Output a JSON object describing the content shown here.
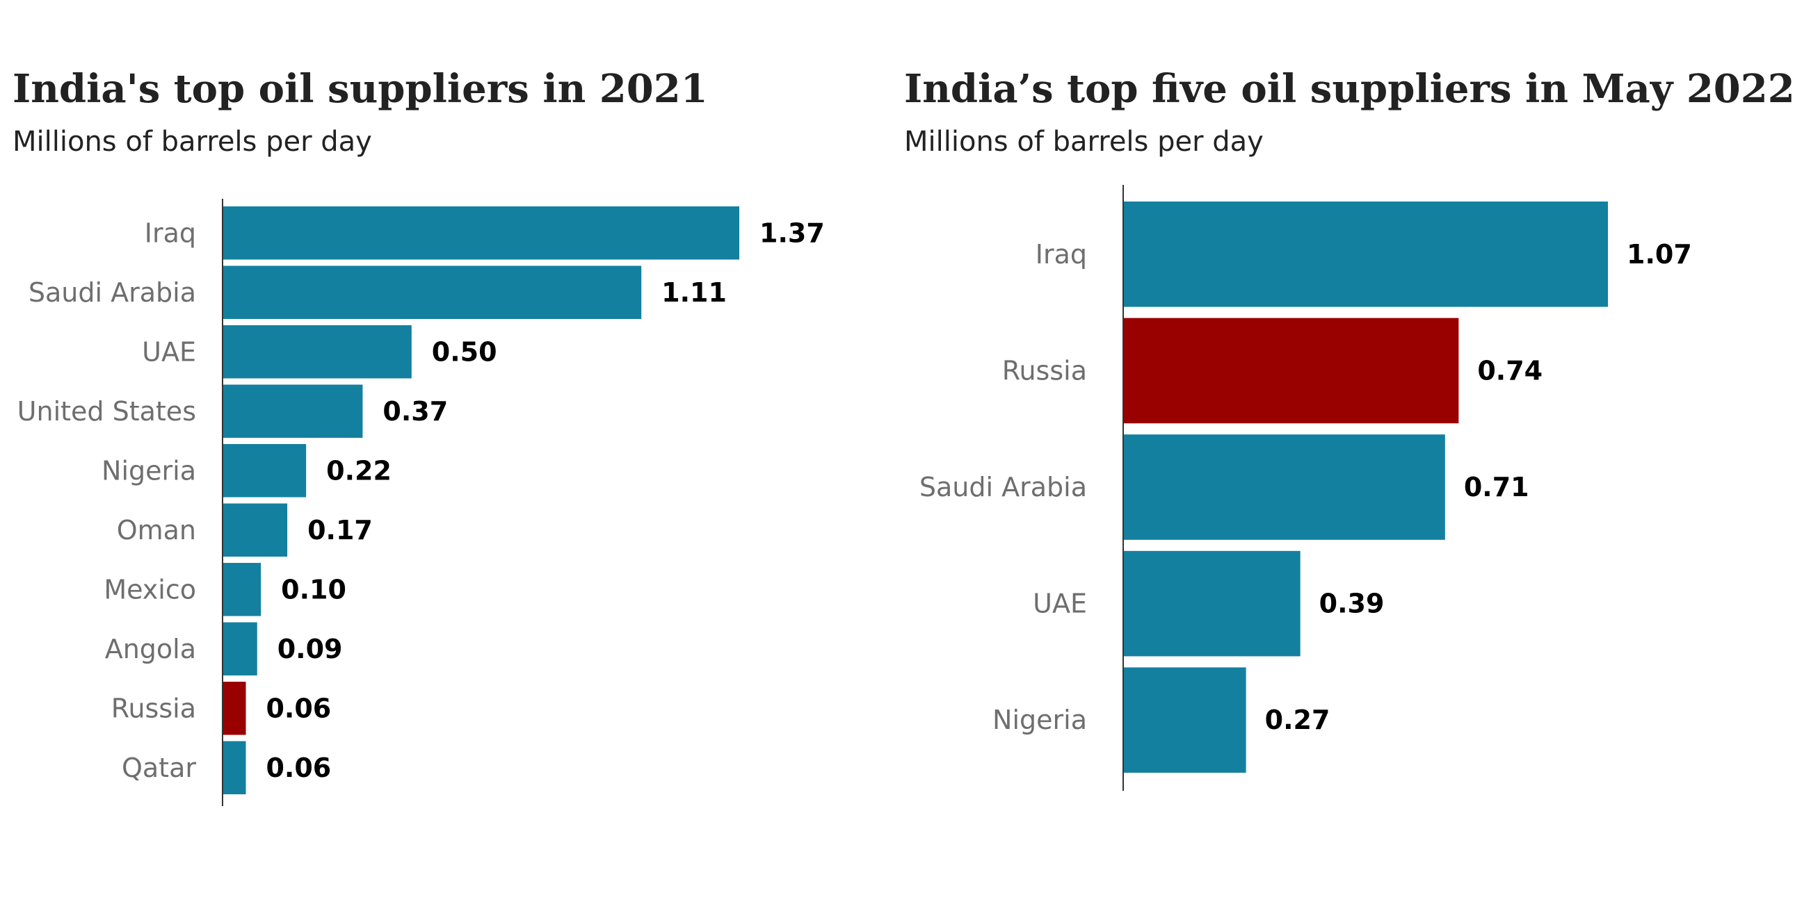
{
  "chart_data": [
    {
      "type": "bar",
      "orientation": "horizontal",
      "title": "India's top oil suppliers in 2021",
      "subtitle": "Millions of barrels per day",
      "categories": [
        "Iraq",
        "Saudi Arabia",
        "UAE",
        "United States",
        "Nigeria",
        "Oman",
        "Mexico",
        "Angola",
        "Russia",
        "Qatar"
      ],
      "values": [
        1.37,
        1.11,
        0.5,
        0.37,
        0.22,
        0.17,
        0.1,
        0.09,
        0.06,
        0.06
      ],
      "value_labels": [
        "1.37",
        "1.11",
        "0.50",
        "0.37",
        "0.22",
        "0.17",
        "0.10",
        "0.09",
        "0.06",
        "0.06"
      ],
      "highlight": "Russia",
      "xlim": [
        0,
        1.37
      ],
      "grid": false,
      "colors": {
        "bar": "#14809f",
        "highlight": "#990000"
      }
    },
    {
      "type": "bar",
      "orientation": "horizontal",
      "title": "India’s top five oil suppliers in May 2022",
      "subtitle": "Millions of barrels per day",
      "categories": [
        "Iraq",
        "Russia",
        "Saudi Arabia",
        "UAE",
        "Nigeria"
      ],
      "values": [
        1.07,
        0.74,
        0.71,
        0.39,
        0.27
      ],
      "value_labels": [
        "1.07",
        "0.74",
        "0.71",
        "0.39",
        "0.27"
      ],
      "highlight": "Russia",
      "xlim": [
        0,
        1.07
      ],
      "grid": false,
      "colors": {
        "bar": "#14809f",
        "highlight": "#990000"
      }
    }
  ]
}
